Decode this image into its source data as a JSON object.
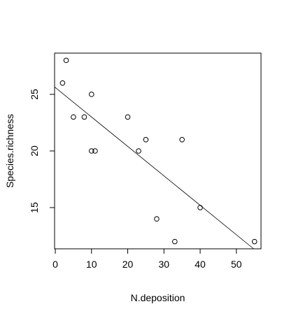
{
  "chart_data": {
    "type": "scatter",
    "title": "",
    "xlabel": "N.deposition",
    "ylabel": "Species.richness",
    "xlim": [
      -0.2,
      56.8
    ],
    "ylim": [
      11.36,
      28.64
    ],
    "xticks": [
      0,
      10,
      20,
      30,
      40,
      50
    ],
    "yticks": [
      15,
      20,
      25
    ],
    "grid": false,
    "legend": "none",
    "points": [
      {
        "x": 2,
        "y": 26
      },
      {
        "x": 3,
        "y": 28
      },
      {
        "x": 5,
        "y": 23
      },
      {
        "x": 8,
        "y": 23
      },
      {
        "x": 10,
        "y": 25
      },
      {
        "x": 10,
        "y": 20
      },
      {
        "x": 11,
        "y": 20
      },
      {
        "x": 20,
        "y": 23
      },
      {
        "x": 23,
        "y": 20
      },
      {
        "x": 25,
        "y": 21
      },
      {
        "x": 28,
        "y": 14
      },
      {
        "x": 33,
        "y": 12
      },
      {
        "x": 35,
        "y": 21
      },
      {
        "x": 40,
        "y": 15
      },
      {
        "x": 55,
        "y": 12
      }
    ],
    "regression_line": {
      "intercept": 25.6,
      "slope": -0.26
    },
    "colors": {
      "points": "#000000",
      "line": "#000000",
      "axes": "#000000"
    }
  }
}
